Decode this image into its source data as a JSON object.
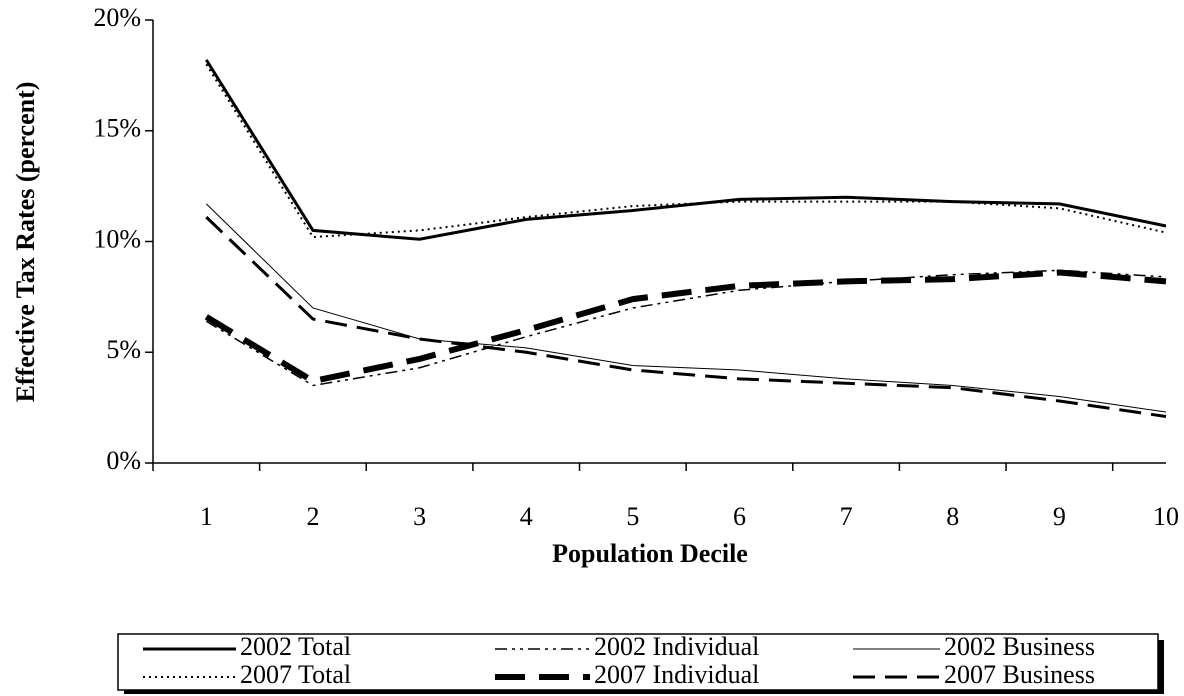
{
  "chart_data": {
    "type": "line",
    "x_label": "Population Decile",
    "y_label": "Effective Tax Rates (percent)",
    "categories": [
      "1",
      "2",
      "3",
      "4",
      "5",
      "6",
      "7",
      "8",
      "9",
      "10"
    ],
    "ylim": [
      0,
      20
    ],
    "yticks": [
      {
        "value": 0,
        "label": "0%"
      },
      {
        "value": 5,
        "label": "5%"
      },
      {
        "value": 10,
        "label": "10%"
      },
      {
        "value": 15,
        "label": "15%"
      },
      {
        "value": 20,
        "label": "20%"
      }
    ],
    "legend": "bottom",
    "series": [
      {
        "name": "2002 Total",
        "color": "#000000",
        "dash": "solid",
        "width": 3,
        "values": [
          18.2,
          10.5,
          10.1,
          11.0,
          11.4,
          11.9,
          12.0,
          11.8,
          11.7,
          10.7
        ]
      },
      {
        "name": "2002 Individual",
        "color": "#000000",
        "dash": "dashdotdot",
        "width": 1.5,
        "values": [
          6.4,
          3.5,
          4.3,
          5.7,
          7.0,
          7.8,
          8.2,
          8.5,
          8.7,
          8.4
        ]
      },
      {
        "name": "2002 Business",
        "color": "#000000",
        "dash": "solid",
        "width": 1,
        "values": [
          11.7,
          7.0,
          5.6,
          5.2,
          4.4,
          4.2,
          3.8,
          3.5,
          3.0,
          2.3
        ]
      },
      {
        "name": "2007 Total",
        "color": "#000000",
        "dash": "dotted",
        "width": 2,
        "values": [
          18.0,
          10.2,
          10.5,
          11.1,
          11.6,
          11.8,
          11.8,
          11.8,
          11.5,
          10.4
        ]
      },
      {
        "name": "2007 Individual",
        "color": "#000000",
        "dash": "longdash",
        "width": 6,
        "values": [
          6.6,
          3.7,
          4.7,
          6.0,
          7.4,
          8.0,
          8.2,
          8.3,
          8.6,
          8.2
        ]
      },
      {
        "name": "2007 Business",
        "color": "#000000",
        "dash": "dash",
        "width": 3,
        "values": [
          11.1,
          6.5,
          5.6,
          5.0,
          4.2,
          3.8,
          3.6,
          3.4,
          2.8,
          2.1
        ]
      }
    ]
  }
}
